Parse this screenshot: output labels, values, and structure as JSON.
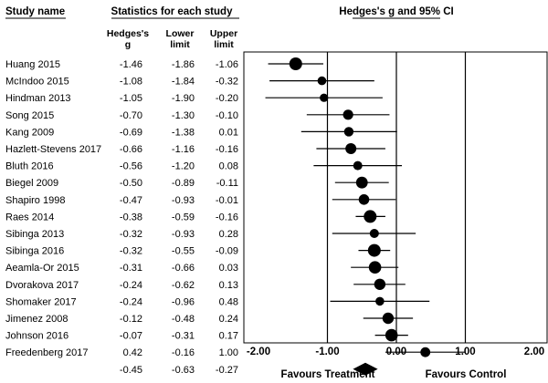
{
  "chart_data": {
    "type": "forest",
    "headers": {
      "study_name": "Study name",
      "statistics": "Statistics for each study",
      "effect": "Hedges's g and 95% CI"
    },
    "columns": [
      {
        "line1": "Hedges's",
        "line2": "g"
      },
      {
        "line1": "Lower",
        "line2": "limit"
      },
      {
        "line1": "Upper",
        "line2": "limit"
      }
    ],
    "studies": [
      {
        "name": "Huang 2015",
        "g": "-1.46",
        "lower": "-1.86",
        "upper": "-1.06",
        "weight": 1.0
      },
      {
        "name": "McIndoo 2015",
        "g": "-1.08",
        "lower": "-1.84",
        "upper": "-0.32",
        "weight": 0.45
      },
      {
        "name": "Hindman 2013",
        "g": "-1.05",
        "lower": "-1.90",
        "upper": "-0.20",
        "weight": 0.4
      },
      {
        "name": "Song 2015",
        "g": "-0.70",
        "lower": "-1.30",
        "upper": "-0.10",
        "weight": 0.65
      },
      {
        "name": "Kang 2009",
        "g": "-0.69",
        "lower": "-1.38",
        "upper": "0.01",
        "weight": 0.55
      },
      {
        "name": "Hazlett-Stevens 2017",
        "g": "-0.66",
        "lower": "-1.16",
        "upper": "-0.16",
        "weight": 0.75
      },
      {
        "name": "Bluth 2016",
        "g": "-0.56",
        "lower": "-1.20",
        "upper": "0.08",
        "weight": 0.5
      },
      {
        "name": "Biegel 2009",
        "g": "-0.50",
        "lower": "-0.89",
        "upper": "-0.11",
        "weight": 0.85
      },
      {
        "name": "Shapiro 1998",
        "g": "-0.47",
        "lower": "-0.93",
        "upper": "-0.01",
        "weight": 0.7
      },
      {
        "name": "Raes 2014",
        "g": "-0.38",
        "lower": "-0.59",
        "upper": "-0.16",
        "weight": 1.0
      },
      {
        "name": "Sibinga 2013",
        "g": "-0.32",
        "lower": "-0.93",
        "upper": "0.28",
        "weight": 0.5
      },
      {
        "name": "Sibinga 2016",
        "g": "-0.32",
        "lower": "-0.55",
        "upper": "-0.09",
        "weight": 1.0
      },
      {
        "name": "Aeamla-Or 2015",
        "g": "-0.31",
        "lower": "-0.66",
        "upper": "0.03",
        "weight": 0.95
      },
      {
        "name": "Dvorakova 2017",
        "g": "-0.24",
        "lower": "-0.62",
        "upper": "0.13",
        "weight": 0.8
      },
      {
        "name": "Shomaker 2017",
        "g": "-0.24",
        "lower": "-0.96",
        "upper": "0.48",
        "weight": 0.45
      },
      {
        "name": "Jimenez 2008",
        "g": "-0.12",
        "lower": "-0.48",
        "upper": "0.24",
        "weight": 0.8
      },
      {
        "name": "Johnson 2016",
        "g": "-0.07",
        "lower": "-0.31",
        "upper": "0.17",
        "weight": 0.95
      },
      {
        "name": "Freedenberg 2017",
        "g": "0.42",
        "lower": "-0.16",
        "upper": "1.00",
        "weight": 0.6
      }
    ],
    "summary": {
      "g": "-0.45",
      "lower": "-0.63",
      "upper": "-0.27"
    },
    "xlim": [
      -2,
      2
    ],
    "ticks": [
      "-2.00",
      "-1.00",
      "0.00",
      "1.00",
      "2.00"
    ],
    "reference_lines": [
      -1,
      0,
      1
    ],
    "footer_left": "Favours Treatment",
    "footer_right": "Favours Control"
  }
}
